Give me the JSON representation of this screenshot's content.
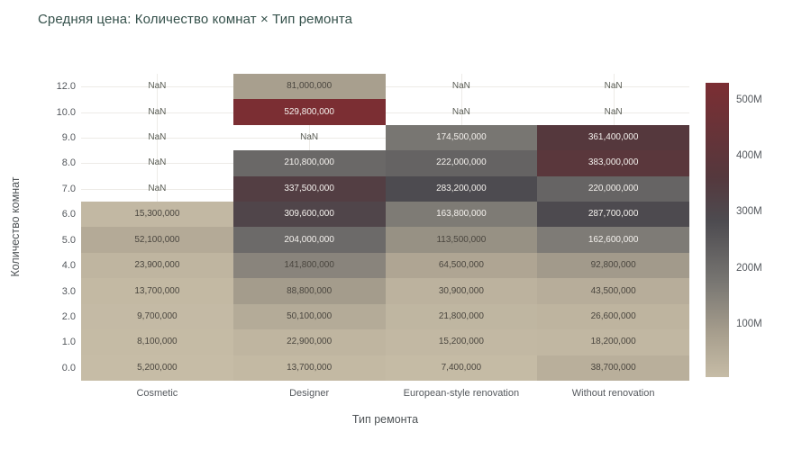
{
  "page": {
    "background": "#ffffff"
  },
  "chart_data": {
    "type": "heatmap",
    "title": "Средняя цена: Количество комнат × Тип ремонта",
    "xlabel": "Тип ремонта",
    "ylabel": "Количество комнат",
    "x_categories": [
      "Cosmetic",
      "Designer",
      "European-style renovation",
      "Without renovation"
    ],
    "y_categories": [
      "12.0",
      "10.0",
      "9.0",
      "8.0",
      "7.0",
      "6.0",
      "5.0",
      "4.0",
      "3.0",
      "2.0",
      "1.0",
      "0.0"
    ],
    "values": [
      [
        null,
        81000000,
        null,
        null
      ],
      [
        null,
        529800000,
        null,
        null
      ],
      [
        null,
        null,
        174500000,
        361400000
      ],
      [
        null,
        210800000,
        222000000,
        383000000
      ],
      [
        null,
        337500000,
        283200000,
        220000000
      ],
      [
        15300000,
        309600000,
        163800000,
        287700000
      ],
      [
        52100000,
        204000000,
        113500000,
        162600000
      ],
      [
        23900000,
        141800000,
        64500000,
        92800000
      ],
      [
        13700000,
        88800000,
        30900000,
        43500000
      ],
      [
        9700000,
        50100000,
        21800000,
        26600000
      ],
      [
        8100000,
        22900000,
        15200000,
        18200000
      ],
      [
        5200000,
        13700000,
        7400000,
        38700000
      ]
    ],
    "nan_label": "NaN",
    "zmin": 5200000,
    "zmax": 529800000,
    "text_threshold": 150000000,
    "colorscale": [
      [
        0.0,
        "#c6bca6"
      ],
      [
        0.145,
        "#a89f8e"
      ],
      [
        0.323,
        "#787672"
      ],
      [
        0.53,
        "#4d4b50"
      ],
      [
        0.68,
        "#55383d"
      ],
      [
        1.0,
        "#7b2e33"
      ]
    ],
    "colorbar": {
      "tick_values": [
        100000000,
        200000000,
        300000000,
        400000000,
        500000000
      ],
      "tick_labels": [
        "100M",
        "200M",
        "300M",
        "400M",
        "500M"
      ]
    },
    "grid": true,
    "legend_position": "right",
    "colors": {
      "cell_text_dark": "#4a463f",
      "cell_text_light": "#f4f1ed",
      "nan_text": "#5a5d55",
      "tick_text": "#54585d",
      "title_text": "#35514b",
      "axis_title_text": "#4e5356",
      "gridline": "#edebe7"
    }
  }
}
